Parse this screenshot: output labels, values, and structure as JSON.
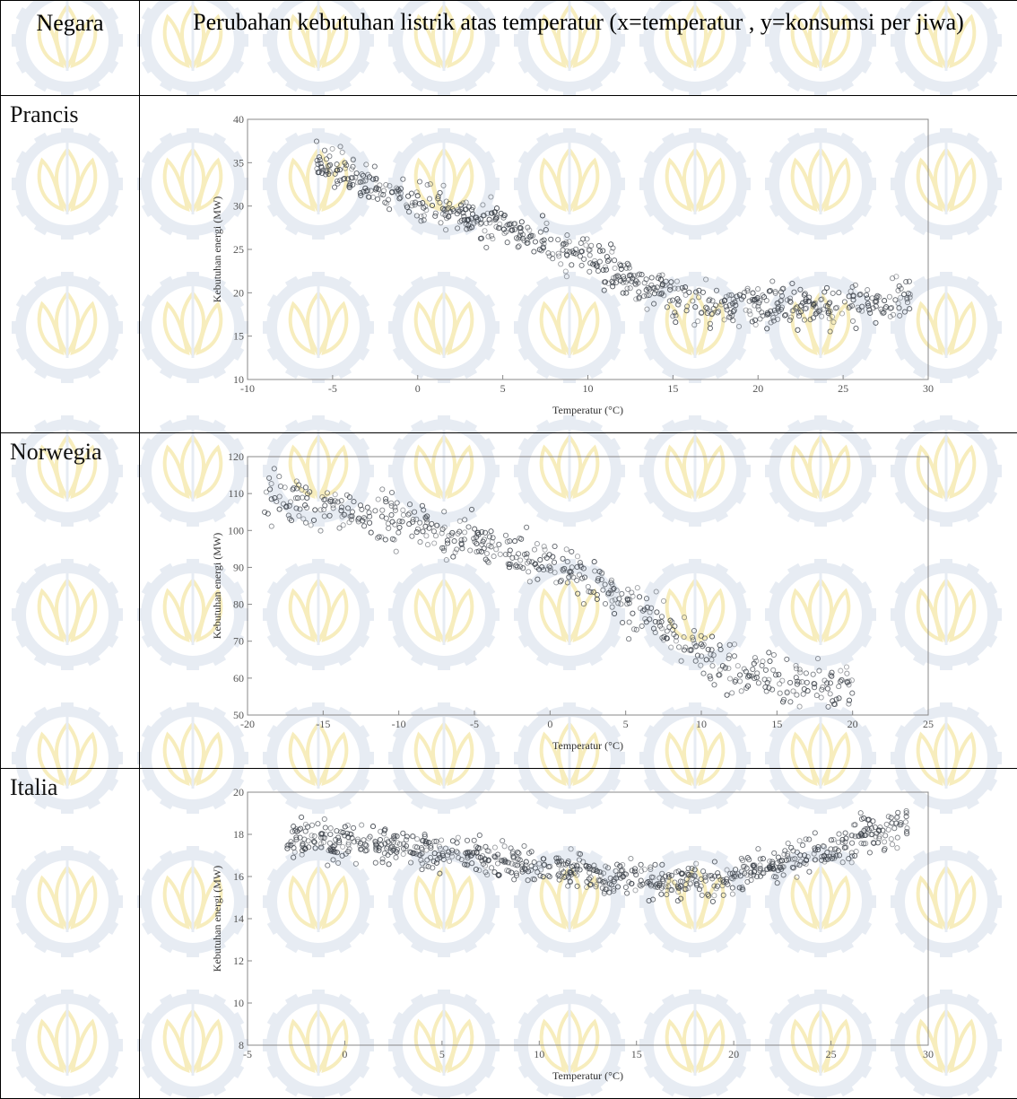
{
  "table": {
    "header_country": "Negara",
    "header_title": "Perubahan kebutuhan listrik atas temperatur (x=temperatur , y=konsumsi per jiwa)"
  },
  "rows": [
    {
      "country": "Prancis"
    },
    {
      "country": "Norwegia"
    },
    {
      "country": "Italia"
    }
  ],
  "colors": {
    "points": "#3a4048",
    "watermark_gear": "#dfe6f0",
    "watermark_lotus": "#f5e7a8"
  },
  "chart_data": [
    {
      "type": "scatter",
      "title": "",
      "xlabel": "Temperatur (°C)",
      "ylabel": "Kebutuhan energi (MW)",
      "xlim": [
        -10,
        30
      ],
      "ylim": [
        10,
        40
      ],
      "xticks": [
        -10,
        -5,
        0,
        5,
        10,
        15,
        20,
        25,
        30
      ],
      "yticks": [
        10,
        15,
        20,
        25,
        30,
        35,
        40
      ],
      "trend": [
        [
          -6,
          35
        ],
        [
          -2,
          32
        ],
        [
          2,
          29.5
        ],
        [
          6,
          27
        ],
        [
          10,
          24
        ],
        [
          13,
          21
        ],
        [
          16,
          19
        ],
        [
          20,
          18.5
        ],
        [
          24,
          18.5
        ],
        [
          29,
          19
        ]
      ],
      "spread": 1.6,
      "n_points": 700
    },
    {
      "type": "scatter",
      "title": "",
      "xlabel": "Temperatur (°C)",
      "ylabel": "Kebutuhan energi (MW)",
      "xlim": [
        -20,
        25
      ],
      "ylim": [
        50,
        120
      ],
      "xticks": [
        -20,
        -15,
        -10,
        -5,
        0,
        5,
        10,
        15,
        20,
        25
      ],
      "yticks": [
        50,
        60,
        70,
        80,
        90,
        100,
        110,
        120
      ],
      "trend": [
        [
          -19,
          110
        ],
        [
          -15,
          106
        ],
        [
          -10,
          102
        ],
        [
          -5,
          97
        ],
        [
          0,
          91
        ],
        [
          3,
          86
        ],
        [
          6,
          78
        ],
        [
          9,
          70
        ],
        [
          12,
          62
        ],
        [
          16,
          58
        ],
        [
          20,
          57
        ]
      ],
      "spread": 4.5,
      "n_points": 550
    },
    {
      "type": "scatter",
      "title": "",
      "xlabel": "Temperatur (°C)",
      "ylabel": "Kebutuhan energi (MW)",
      "xlim": [
        -5,
        30
      ],
      "ylim": [
        8,
        20
      ],
      "xticks": [
        -5,
        0,
        5,
        10,
        15,
        20,
        25,
        30
      ],
      "yticks": [
        8,
        10,
        12,
        14,
        16,
        18,
        20
      ],
      "trend": [
        [
          -3,
          17.8
        ],
        [
          2,
          17.5
        ],
        [
          6,
          17
        ],
        [
          10,
          16.5
        ],
        [
          15,
          15.8
        ],
        [
          19,
          15.7
        ],
        [
          22,
          16.5
        ],
        [
          26,
          17.7
        ],
        [
          29,
          18.5
        ]
      ],
      "spread": 0.6,
      "n_points": 800
    }
  ]
}
